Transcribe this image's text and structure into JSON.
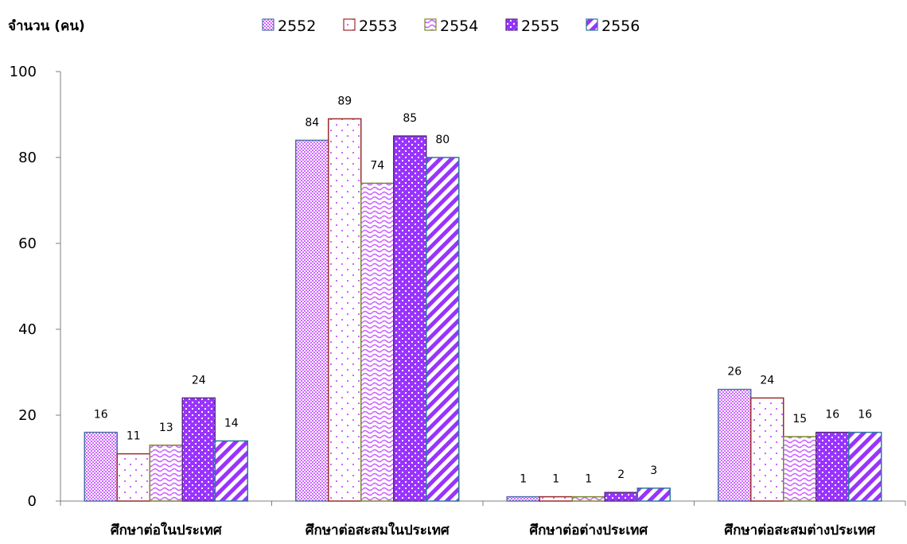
{
  "chart_data": {
    "type": "bar",
    "ylabel": "จำนวน (คน)",
    "xlabel": "",
    "ylim": [
      0,
      100
    ],
    "yticks": [
      0,
      20,
      40,
      60,
      80,
      100
    ],
    "grid": false,
    "legend_position": "top",
    "categories": [
      "ศึกษาต่อในประเทศ",
      "ศึกษาต่อสะสมในประเทศ",
      "ศึกษาต่อต่างประเทศ",
      "ศึกษาต่อสะสมต่างประเทศ"
    ],
    "series": [
      {
        "name": "2552",
        "values": [
          16,
          84,
          1,
          26
        ],
        "color": "#cc66ff",
        "border": "#4f6fa8"
      },
      {
        "name": "2553",
        "values": [
          11,
          89,
          1,
          24
        ],
        "color": "#cc66ff",
        "border": "#9b2c2c"
      },
      {
        "name": "2554",
        "values": [
          13,
          74,
          1,
          15
        ],
        "color": "#cc66ff",
        "border": "#7a8a2c"
      },
      {
        "name": "2555",
        "values": [
          24,
          85,
          2,
          16
        ],
        "color": "#9933ff",
        "border": "#5a2a8a"
      },
      {
        "name": "2556",
        "values": [
          14,
          80,
          3,
          16
        ],
        "color": "#9933ff",
        "border": "#2a7a9a"
      }
    ]
  }
}
